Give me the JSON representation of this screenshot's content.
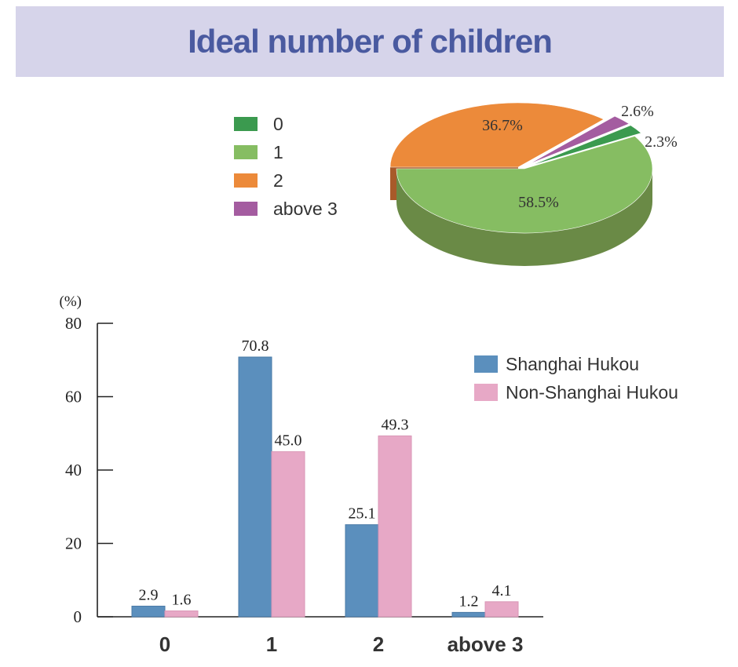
{
  "title": "Ideal number of children",
  "colors": {
    "banner": "#d6d4ea",
    "title": "#4a5aa0",
    "shanghai": "#5b8fbd",
    "non_shanghai": "#e7a8c6"
  },
  "chart_data": [
    {
      "type": "pie",
      "style": "3d",
      "legend_position": "left",
      "slices": [
        {
          "label": "0",
          "value": 2.3,
          "display": "2.3%",
          "color": "#3b9a4f",
          "side": "#2a7038"
        },
        {
          "label": "1",
          "value": 58.5,
          "display": "58.5%",
          "color": "#86bd62",
          "side": "#6a8a46"
        },
        {
          "label": "2",
          "value": 36.7,
          "display": "36.7%",
          "color": "#ec8a3a",
          "side": "#a85a2a"
        },
        {
          "label": "above 3",
          "value": 2.6,
          "display": "2.6%",
          "color": "#a45ca0",
          "side": "#6f3d70"
        }
      ]
    },
    {
      "type": "bar",
      "ylabel": "(%)",
      "ylim": [
        0,
        80
      ],
      "yticks": [
        0,
        20,
        40,
        60,
        80
      ],
      "categories": [
        "0",
        "1",
        "2",
        "above 3"
      ],
      "legend_position": "top-right",
      "series": [
        {
          "name": "Shanghai Hukou",
          "values": [
            2.9,
            70.8,
            25.1,
            1.2
          ],
          "labels": [
            "2.9",
            "70.8",
            "25.1",
            "1.2"
          ],
          "color": "#5b8fbd"
        },
        {
          "name": "Non-Shanghai Hukou",
          "values": [
            1.6,
            45.0,
            49.3,
            4.1
          ],
          "labels": [
            "1.6",
            "45.0",
            "49.3",
            "4.1"
          ],
          "color": "#e7a8c6"
        }
      ]
    }
  ]
}
